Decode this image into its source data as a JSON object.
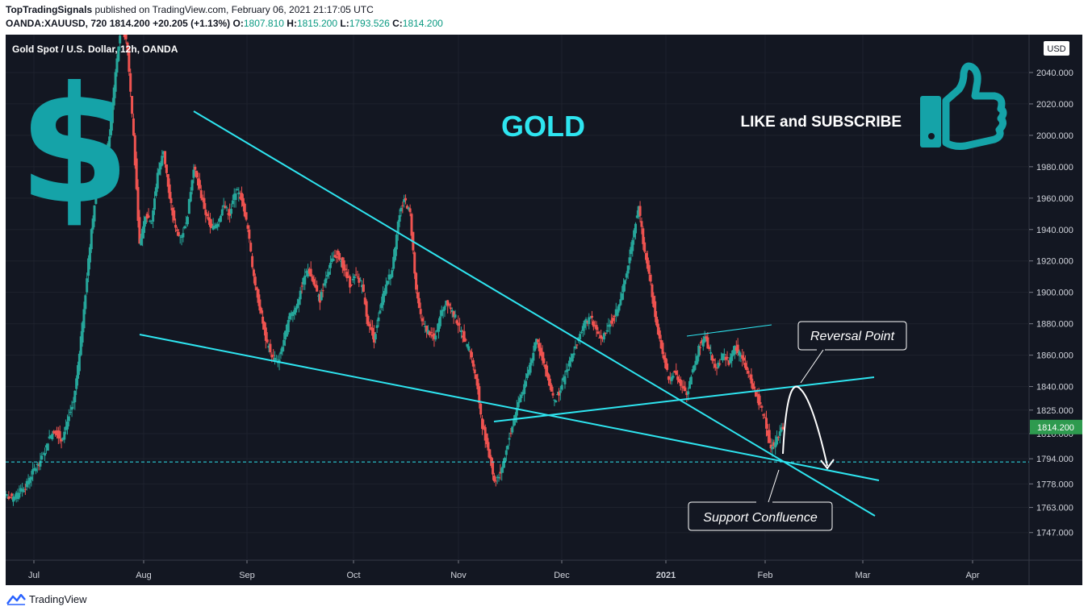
{
  "header": {
    "author": "TopTradingSignals",
    "published_text": "published on TradingView.com, February 06, 2021 21:17:05 UTC",
    "symbol": "OANDA:XAUUSD, 720",
    "last": "1814.200",
    "change": "+20.205 (+1.13%)",
    "o_label": "O:",
    "o_value": "1807.810",
    "h_label": "H:",
    "h_value": "1815.200",
    "l_label": "L:",
    "l_value": "1793.526",
    "c_label": "C:",
    "c_value": "1814.200"
  },
  "footer": {
    "brand": "TradingView"
  },
  "colors": {
    "up": "#26a69a",
    "down": "#ef5350",
    "trendline": "#2ee5f0",
    "background": "#131722"
  },
  "icons": [
    "dollar-icon",
    "thumbs-up-icon",
    "tradingview-logo-icon"
  ],
  "chart_data": {
    "type": "candlestick",
    "title": "Gold Spot / U.S. Dollar, 12h, OANDA",
    "currency": "USD",
    "headline": "GOLD",
    "cta": "LIKE and SUBSCRIBE",
    "price_label": "1814.200",
    "y_ticks": [
      2040,
      2020,
      2000,
      1980,
      1960,
      1940,
      1920,
      1900,
      1880,
      1860,
      1840,
      1825,
      1810,
      1794,
      1778,
      1763,
      1747
    ],
    "x_ticks": [
      "Jul",
      "Aug",
      "Sep",
      "Oct",
      "Nov",
      "Dec",
      "2021",
      "Feb",
      "Mar",
      "Apr"
    ],
    "ylim": [
      1733,
      2060
    ],
    "key_level": 1792,
    "closes": [
      1770,
      1768,
      1773,
      1776,
      1784,
      1790,
      1796,
      1808,
      1812,
      1806,
      1818,
      1830,
      1860,
      1900,
      1940,
      1972,
      1978,
      2000,
      2040,
      2072,
      2055,
      2000,
      1930,
      1950,
      1945,
      1975,
      1990,
      1960,
      1940,
      1935,
      1950,
      1980,
      1965,
      1950,
      1940,
      1945,
      1955,
      1950,
      1965,
      1960,
      1940,
      1910,
      1890,
      1870,
      1860,
      1855,
      1870,
      1885,
      1890,
      1905,
      1915,
      1905,
      1895,
      1910,
      1920,
      1925,
      1915,
      1905,
      1910,
      1905,
      1880,
      1870,
      1890,
      1905,
      1915,
      1945,
      1960,
      1950,
      1900,
      1880,
      1875,
      1870,
      1885,
      1895,
      1888,
      1880,
      1870,
      1862,
      1845,
      1815,
      1800,
      1780,
      1785,
      1800,
      1815,
      1830,
      1840,
      1855,
      1870,
      1858,
      1845,
      1830,
      1838,
      1850,
      1860,
      1870,
      1880,
      1885,
      1875,
      1870,
      1878,
      1885,
      1895,
      1912,
      1935,
      1955,
      1925,
      1905,
      1880,
      1860,
      1845,
      1850,
      1840,
      1835,
      1850,
      1865,
      1872,
      1860,
      1852,
      1860,
      1855,
      1865,
      1860,
      1850,
      1840,
      1830,
      1820,
      1800,
      1808,
      1814
    ],
    "annotations": [
      {
        "text": "Reversal Point",
        "anchor": "upper trendline break"
      },
      {
        "text": "Support Confluence",
        "anchor": "trendline intersection"
      }
    ],
    "trendlines": [
      {
        "name": "descending resistance",
        "from": [
          "Aug",
          2000
        ],
        "to": [
          "Mar",
          1762
        ]
      },
      {
        "name": "lower descending support",
        "from": [
          "Aug",
          1871
        ],
        "to": [
          "Mar",
          1780
        ]
      },
      {
        "name": "rising neckline",
        "from": [
          "Nov",
          1816
        ],
        "to": [
          "Mar",
          1843
        ]
      },
      {
        "name": "consolidation top",
        "from": [
          "Jan",
          1870
        ],
        "to": [
          "Feb",
          1877
        ]
      }
    ],
    "grid": true,
    "legend": "none"
  }
}
